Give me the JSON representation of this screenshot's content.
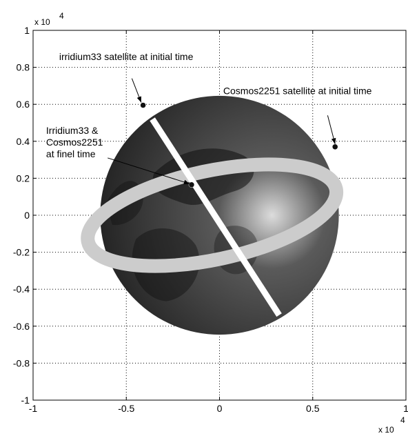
{
  "chart_data": {
    "type": "scatter",
    "title": "",
    "xlabel": "",
    "ylabel": "",
    "xlim": [
      -1,
      1
    ],
    "ylim": [
      -1,
      1
    ],
    "grid": true,
    "x_ticks": [
      "-1",
      "-0.5",
      "0",
      "0.5",
      "1"
    ],
    "y_ticks": [
      "-1",
      "-0.8",
      "-0.6",
      "-0.4",
      "-0.2",
      "0",
      "0.2",
      "0.4",
      "0.6",
      "0.8",
      "1"
    ],
    "x_multiplier": {
      "base": "x 10",
      "exponent": "4"
    },
    "y_multiplier": {
      "base": "x 10",
      "exponent": "4"
    },
    "earth": {
      "center": [
        0,
        0
      ],
      "radius": 0.64,
      "colors": {
        "dark": "#1c1c1c",
        "mid": "#5a5a5a",
        "light": "#dcdcdc"
      }
    },
    "orbits": [
      {
        "label": "irridium33-orbit",
        "color": "#ffffff",
        "path": [
          [
            -0.36,
            0.52
          ],
          [
            0.32,
            -0.54
          ]
        ]
      },
      {
        "label": "cosmos2251-orbit",
        "color": "#cccccc",
        "center": [
          -0.04,
          0.0
        ],
        "rx": 0.68,
        "ry": 0.24,
        "rotation_deg": 12
      }
    ],
    "points": [
      {
        "name": "irridium33-initial",
        "x": -0.41,
        "y": 0.595
      },
      {
        "name": "cosmos2251-initial",
        "x": 0.62,
        "y": 0.37
      },
      {
        "name": "final-time",
        "x": -0.15,
        "y": 0.165
      }
    ],
    "annotations": [
      {
        "lines": [
          "irridium33 satellite at initial time"
        ],
        "text_pos": [
          -0.86,
          0.84
        ],
        "arrow_from": [
          -0.47,
          0.74
        ],
        "arrow_to": [
          -0.42,
          0.61
        ]
      },
      {
        "lines": [
          "Cosmos2251 satellite at initial time"
        ],
        "text_pos": [
          0.02,
          0.655
        ],
        "arrow_from": [
          0.58,
          0.54
        ],
        "arrow_to": [
          0.62,
          0.385
        ]
      },
      {
        "lines": [
          "Irridium33 &",
          "Cosmos2251",
          "at finel time"
        ],
        "text_pos": [
          -0.93,
          0.44
        ],
        "arrow_from": [
          -0.6,
          0.31
        ],
        "arrow_to": [
          -0.16,
          0.17
        ]
      }
    ]
  }
}
